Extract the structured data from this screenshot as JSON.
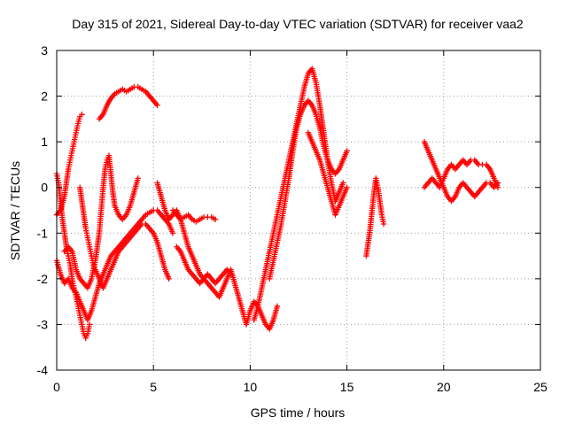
{
  "chart_data": {
    "type": "scatter",
    "title": "Day 315 of 2021, Sidereal Day-to-day VTEC variation (SDTVAR) for receiver vaa2",
    "xlabel": "GPS time / hours",
    "ylabel": "SDTVAR / TECUs",
    "xlim": [
      0,
      25
    ],
    "ylim": [
      -4,
      3
    ],
    "x_ticks": [
      0,
      5,
      10,
      15,
      20,
      25
    ],
    "y_ticks": [
      -4,
      -3,
      -2,
      -1,
      0,
      1,
      2,
      3
    ],
    "x_tick_labels": [
      "0",
      "5",
      "10",
      "15",
      "20",
      "25"
    ],
    "y_tick_labels": [
      "-4",
      "-3",
      "-2",
      "-1",
      "0",
      "1",
      "2",
      "3"
    ],
    "grid": true,
    "marker": "+",
    "color": "#ff0000",
    "series": [
      {
        "name": "trace-1",
        "points": [
          [
            0.0,
            -0.6
          ],
          [
            0.2,
            -0.5
          ],
          [
            0.4,
            -0.2
          ],
          [
            0.5,
            0.1
          ],
          [
            0.6,
            0.4
          ],
          [
            0.7,
            0.6
          ],
          [
            0.8,
            0.8
          ],
          [
            0.9,
            1.0
          ],
          [
            1.0,
            1.2
          ],
          [
            1.1,
            1.4
          ],
          [
            1.2,
            1.55
          ],
          [
            1.3,
            1.6
          ]
        ]
      },
      {
        "name": "trace-2",
        "points": [
          [
            2.2,
            1.5
          ],
          [
            2.4,
            1.6
          ],
          [
            2.6,
            1.8
          ],
          [
            2.8,
            1.95
          ],
          [
            3.0,
            2.05
          ],
          [
            3.2,
            2.1
          ],
          [
            3.4,
            2.15
          ],
          [
            3.6,
            2.1
          ],
          [
            3.8,
            2.15
          ],
          [
            4.0,
            2.2
          ],
          [
            4.2,
            2.2
          ],
          [
            4.4,
            2.15
          ],
          [
            4.6,
            2.1
          ],
          [
            4.8,
            2.0
          ],
          [
            5.0,
            1.9
          ],
          [
            5.2,
            1.8
          ]
        ]
      },
      {
        "name": "trace-3",
        "points": [
          [
            0.0,
            0.3
          ],
          [
            0.1,
            0.1
          ],
          [
            0.2,
            -0.3
          ],
          [
            0.3,
            -0.7
          ],
          [
            0.4,
            -1.0
          ],
          [
            0.5,
            -1.3
          ],
          [
            0.6,
            -1.5
          ],
          [
            0.7,
            -1.7
          ],
          [
            0.8,
            -2.0
          ],
          [
            0.9,
            -2.2
          ],
          [
            1.0,
            -2.4
          ],
          [
            1.1,
            -2.6
          ],
          [
            1.2,
            -2.8
          ],
          [
            1.3,
            -3.0
          ],
          [
            1.4,
            -3.2
          ],
          [
            1.5,
            -3.3
          ],
          [
            1.6,
            -3.2
          ],
          [
            1.7,
            -3.0
          ]
        ]
      },
      {
        "name": "trace-4",
        "points": [
          [
            0.0,
            -1.6
          ],
          [
            0.2,
            -1.9
          ],
          [
            0.4,
            -2.1
          ],
          [
            0.6,
            -2.0
          ],
          [
            0.8,
            -2.2
          ],
          [
            1.0,
            -2.3
          ],
          [
            1.2,
            -2.5
          ],
          [
            1.4,
            -2.7
          ],
          [
            1.6,
            -2.9
          ],
          [
            1.8,
            -2.7
          ],
          [
            2.0,
            -2.4
          ],
          [
            2.2,
            -2.1
          ],
          [
            2.4,
            -1.9
          ],
          [
            2.6,
            -1.7
          ],
          [
            2.8,
            -1.5
          ],
          [
            3.0,
            -1.4
          ],
          [
            3.2,
            -1.3
          ],
          [
            3.4,
            -1.2
          ],
          [
            3.6,
            -1.1
          ],
          [
            3.8,
            -1.0
          ],
          [
            4.0,
            -0.9
          ],
          [
            4.2,
            -0.8
          ],
          [
            4.4,
            -0.7
          ],
          [
            4.6,
            -0.6
          ],
          [
            4.8,
            -0.55
          ],
          [
            5.0,
            -0.5
          ],
          [
            5.2,
            -0.5
          ],
          [
            5.4,
            -0.6
          ],
          [
            5.6,
            -0.7
          ],
          [
            5.8,
            -0.8
          ],
          [
            6.0,
            -1.0
          ]
        ]
      },
      {
        "name": "trace-5",
        "points": [
          [
            0.4,
            -1.4
          ],
          [
            0.6,
            -1.3
          ],
          [
            0.8,
            -1.4
          ],
          [
            1.0,
            -1.8
          ],
          [
            1.2,
            -2.0
          ],
          [
            1.4,
            -2.1
          ],
          [
            1.6,
            -2.2
          ],
          [
            1.8,
            -2.0
          ],
          [
            2.0,
            -1.6
          ],
          [
            2.2,
            -1.0
          ],
          [
            2.3,
            -0.5
          ],
          [
            2.4,
            0.0
          ],
          [
            2.5,
            0.4
          ],
          [
            2.6,
            0.6
          ],
          [
            2.7,
            0.7
          ],
          [
            2.8,
            0.3
          ],
          [
            2.9,
            -0.1
          ],
          [
            3.0,
            -0.4
          ],
          [
            3.2,
            -0.6
          ],
          [
            3.4,
            -0.7
          ],
          [
            3.6,
            -0.6
          ],
          [
            3.8,
            -0.4
          ],
          [
            4.0,
            -0.1
          ],
          [
            4.2,
            0.2
          ]
        ]
      },
      {
        "name": "trace-6",
        "points": [
          [
            1.2,
            0.0
          ],
          [
            1.3,
            -0.3
          ],
          [
            1.4,
            -0.6
          ],
          [
            1.5,
            -0.9
          ],
          [
            1.6,
            -1.1
          ],
          [
            1.7,
            -1.3
          ],
          [
            1.8,
            -1.5
          ],
          [
            1.9,
            -1.7
          ],
          [
            2.0,
            -1.8
          ],
          [
            2.2,
            -2.0
          ],
          [
            2.4,
            -2.2
          ],
          [
            2.6,
            -2.0
          ],
          [
            2.8,
            -1.8
          ],
          [
            3.0,
            -1.6
          ],
          [
            3.2,
            -1.4
          ],
          [
            3.4,
            -1.3
          ],
          [
            3.6,
            -1.2
          ],
          [
            3.8,
            -1.1
          ],
          [
            4.0,
            -1.0
          ],
          [
            4.2,
            -0.9
          ],
          [
            4.4,
            -0.8
          ],
          [
            4.6,
            -0.8
          ],
          [
            4.8,
            -0.9
          ],
          [
            5.0,
            -1.0
          ],
          [
            5.2,
            -1.2
          ],
          [
            5.4,
            -1.5
          ],
          [
            5.6,
            -1.8
          ],
          [
            5.8,
            -2.0
          ]
        ]
      },
      {
        "name": "trace-7",
        "points": [
          [
            5.2,
            0.1
          ],
          [
            5.4,
            -0.2
          ],
          [
            5.6,
            -0.5
          ],
          [
            5.8,
            -0.7
          ],
          [
            6.0,
            -0.6
          ],
          [
            6.2,
            -0.5
          ],
          [
            6.4,
            -0.7
          ],
          [
            6.6,
            -1.0
          ],
          [
            6.8,
            -1.3
          ],
          [
            7.0,
            -1.5
          ],
          [
            7.2,
            -1.7
          ],
          [
            7.4,
            -1.9
          ],
          [
            7.6,
            -2.0
          ],
          [
            7.8,
            -2.1
          ],
          [
            8.0,
            -2.2
          ],
          [
            8.2,
            -2.3
          ],
          [
            8.4,
            -2.4
          ],
          [
            8.6,
            -2.2
          ],
          [
            8.8,
            -2.0
          ],
          [
            9.0,
            -1.8
          ],
          [
            9.2,
            -2.1
          ],
          [
            9.4,
            -2.4
          ],
          [
            9.6,
            -2.7
          ],
          [
            9.8,
            -3.0
          ],
          [
            10.0,
            -2.7
          ],
          [
            10.2,
            -2.5
          ],
          [
            10.4,
            -2.6
          ],
          [
            10.6,
            -2.8
          ],
          [
            10.8,
            -3.0
          ],
          [
            11.0,
            -3.1
          ],
          [
            11.2,
            -2.9
          ],
          [
            11.4,
            -2.6
          ]
        ]
      },
      {
        "name": "trace-8",
        "points": [
          [
            6.0,
            -0.5
          ],
          [
            6.2,
            -0.6
          ],
          [
            6.4,
            -0.7
          ],
          [
            6.6,
            -0.65
          ],
          [
            6.8,
            -0.6
          ],
          [
            7.0,
            -0.7
          ],
          [
            7.2,
            -0.75
          ],
          [
            7.4,
            -0.7
          ],
          [
            7.6,
            -0.65
          ],
          [
            7.8,
            -0.65
          ],
          [
            8.0,
            -0.65
          ],
          [
            8.2,
            -0.7
          ]
        ]
      },
      {
        "name": "trace-9",
        "points": [
          [
            6.2,
            -1.3
          ],
          [
            6.4,
            -1.4
          ],
          [
            6.6,
            -1.6
          ],
          [
            6.8,
            -1.8
          ],
          [
            7.0,
            -1.9
          ],
          [
            7.2,
            -2.0
          ],
          [
            7.4,
            -2.1
          ],
          [
            7.6,
            -2.0
          ],
          [
            7.8,
            -1.9
          ],
          [
            8.0,
            -2.0
          ],
          [
            8.2,
            -2.1
          ],
          [
            8.4,
            -2.0
          ],
          [
            8.6,
            -1.9
          ],
          [
            8.8,
            -1.8
          ],
          [
            9.0,
            -1.9
          ]
        ]
      },
      {
        "name": "trace-10",
        "points": [
          [
            10.2,
            -2.9
          ],
          [
            10.4,
            -2.6
          ],
          [
            10.6,
            -2.2
          ],
          [
            10.8,
            -1.8
          ],
          [
            11.0,
            -1.4
          ],
          [
            11.2,
            -1.0
          ],
          [
            11.4,
            -0.6
          ],
          [
            11.6,
            -0.2
          ],
          [
            11.8,
            0.2
          ],
          [
            12.0,
            0.6
          ],
          [
            12.2,
            1.0
          ],
          [
            12.4,
            1.4
          ],
          [
            12.6,
            1.8
          ],
          [
            12.8,
            2.2
          ],
          [
            13.0,
            2.5
          ],
          [
            13.2,
            2.6
          ],
          [
            13.4,
            2.3
          ],
          [
            13.6,
            1.8
          ],
          [
            13.8,
            1.2
          ],
          [
            14.0,
            0.6
          ],
          [
            14.2,
            0.1
          ],
          [
            14.4,
            -0.3
          ],
          [
            14.6,
            -0.1
          ],
          [
            14.8,
            0.1
          ]
        ]
      },
      {
        "name": "trace-11",
        "points": [
          [
            11.0,
            -2.0
          ],
          [
            11.2,
            -1.6
          ],
          [
            11.4,
            -1.2
          ],
          [
            11.6,
            -0.8
          ],
          [
            11.8,
            -0.3
          ],
          [
            12.0,
            0.2
          ],
          [
            12.2,
            0.8
          ],
          [
            12.4,
            1.3
          ],
          [
            12.6,
            1.6
          ],
          [
            12.8,
            1.8
          ],
          [
            13.0,
            1.9
          ],
          [
            13.2,
            1.8
          ],
          [
            13.4,
            1.6
          ],
          [
            13.6,
            1.3
          ],
          [
            13.8,
            0.9
          ],
          [
            14.0,
            0.6
          ],
          [
            14.2,
            0.4
          ],
          [
            14.4,
            0.3
          ],
          [
            14.6,
            0.4
          ],
          [
            14.8,
            0.6
          ],
          [
            15.0,
            0.8
          ]
        ]
      },
      {
        "name": "trace-12",
        "points": [
          [
            13.0,
            1.2
          ],
          [
            13.2,
            1.0
          ],
          [
            13.4,
            0.8
          ],
          [
            13.6,
            0.6
          ],
          [
            13.8,
            0.3
          ],
          [
            14.0,
            0.0
          ],
          [
            14.2,
            -0.3
          ],
          [
            14.4,
            -0.6
          ],
          [
            14.6,
            -0.4
          ],
          [
            14.8,
            -0.2
          ],
          [
            15.0,
            0.0
          ]
        ]
      },
      {
        "name": "trace-13",
        "points": [
          [
            16.0,
            -1.5
          ],
          [
            16.1,
            -1.2
          ],
          [
            16.2,
            -0.9
          ],
          [
            16.3,
            -0.5
          ],
          [
            16.4,
            -0.1
          ],
          [
            16.5,
            0.2
          ],
          [
            16.6,
            0.0
          ],
          [
            16.7,
            -0.3
          ],
          [
            16.8,
            -0.6
          ],
          [
            16.9,
            -0.8
          ]
        ]
      },
      {
        "name": "trace-14",
        "points": [
          [
            19.0,
            1.0
          ],
          [
            19.2,
            0.8
          ],
          [
            19.4,
            0.6
          ],
          [
            19.6,
            0.4
          ],
          [
            19.8,
            0.2
          ],
          [
            20.0,
            0.0
          ],
          [
            20.2,
            -0.2
          ],
          [
            20.4,
            -0.3
          ],
          [
            20.6,
            -0.2
          ],
          [
            20.8,
            0.0
          ],
          [
            21.0,
            0.1
          ],
          [
            21.2,
            0.0
          ],
          [
            21.4,
            -0.1
          ],
          [
            21.6,
            -0.2
          ],
          [
            21.8,
            -0.1
          ],
          [
            22.0,
            0.0
          ],
          [
            22.2,
            0.1
          ],
          [
            22.4,
            0.1
          ],
          [
            22.6,
            0.0
          ],
          [
            22.8,
            0.1
          ]
        ]
      },
      {
        "name": "trace-15",
        "points": [
          [
            19.0,
            0.0
          ],
          [
            19.2,
            0.1
          ],
          [
            19.4,
            0.2
          ],
          [
            19.6,
            0.1
          ],
          [
            19.8,
            0.0
          ],
          [
            20.0,
            0.2
          ],
          [
            20.2,
            0.4
          ],
          [
            20.4,
            0.5
          ],
          [
            20.6,
            0.4
          ],
          [
            20.8,
            0.5
          ],
          [
            21.0,
            0.6
          ],
          [
            21.2,
            0.5
          ],
          [
            21.4,
            0.6
          ],
          [
            21.6,
            0.6
          ],
          [
            21.8,
            0.5
          ],
          [
            22.0,
            0.5
          ],
          [
            22.2,
            0.5
          ],
          [
            22.4,
            0.4
          ],
          [
            22.6,
            0.2
          ],
          [
            22.8,
            0.0
          ]
        ]
      }
    ]
  }
}
